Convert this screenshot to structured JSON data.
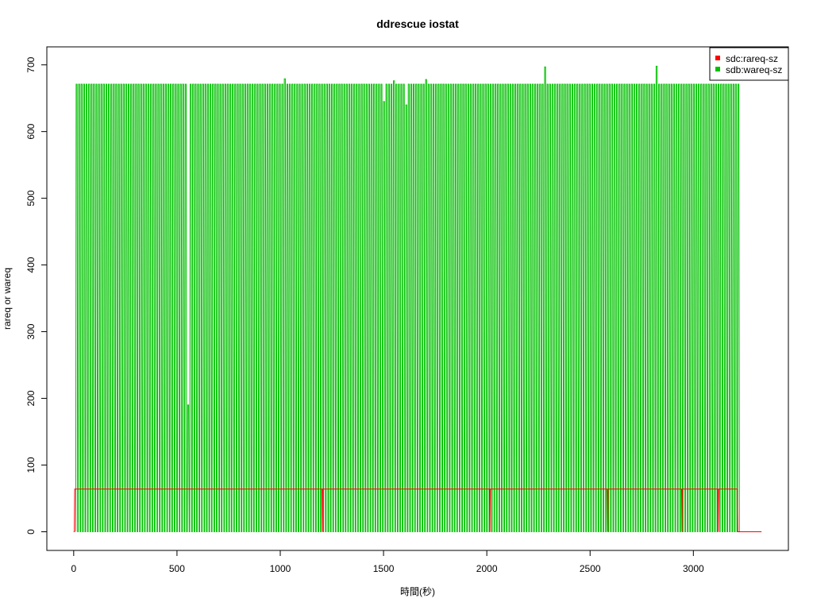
{
  "chart_data": {
    "type": "line",
    "title": "ddrescue iostat",
    "xlabel": "時間(秒)",
    "ylabel": "rareq or wareq",
    "xlim": [
      -130,
      3460
    ],
    "ylim": [
      -28,
      727
    ],
    "x_ticks": [
      0,
      500,
      1000,
      1500,
      2000,
      2500,
      3000
    ],
    "y_ticks": [
      0,
      100,
      200,
      300,
      400,
      500,
      600,
      700
    ],
    "grid": false,
    "legend_position": "top-right",
    "series": [
      {
        "name": "sdc:rareq-sz",
        "color": "#ff0000",
        "description": "Constant around 64 from x≈5 to x≈3215 with brief drops to 0 near 1205, 2015, 2585, 2945, 3120; then 0 until about 3330",
        "points": [
          [
            0,
            0
          ],
          [
            3,
            0
          ],
          [
            5,
            64
          ],
          [
            1203,
            64
          ],
          [
            1205,
            0
          ],
          [
            1207,
            64
          ],
          [
            2013,
            64
          ],
          [
            2015,
            0
          ],
          [
            2017,
            64
          ],
          [
            2583,
            64
          ],
          [
            2585,
            0
          ],
          [
            2587,
            64
          ],
          [
            2943,
            64
          ],
          [
            2945,
            0
          ],
          [
            2947,
            64
          ],
          [
            3118,
            64
          ],
          [
            3120,
            0
          ],
          [
            3122,
            64
          ],
          [
            3213,
            64
          ],
          [
            3215,
            0
          ],
          [
            3330,
            0
          ]
        ]
      },
      {
        "name": "sdb:wareq-sz",
        "color": "#00c000",
        "description": "Rapid periodic spikes between 0 and ~670 from x≈10 to x≈3215, period about 12 seconds, occasional peaks near 680-698",
        "x_start": 10,
        "x_end": 3215,
        "period": 12,
        "low": 0,
        "high": 671,
        "occasional_peaks": [
          [
            1018,
            679
          ],
          [
            2285,
            697
          ],
          [
            2815,
            698
          ],
          [
            1700,
            678
          ],
          [
            1545,
            676
          ]
        ],
        "occasional_dips": [
          [
            555,
            190
          ],
          [
            1495,
            645
          ],
          [
            1605,
            640
          ]
        ]
      }
    ]
  }
}
